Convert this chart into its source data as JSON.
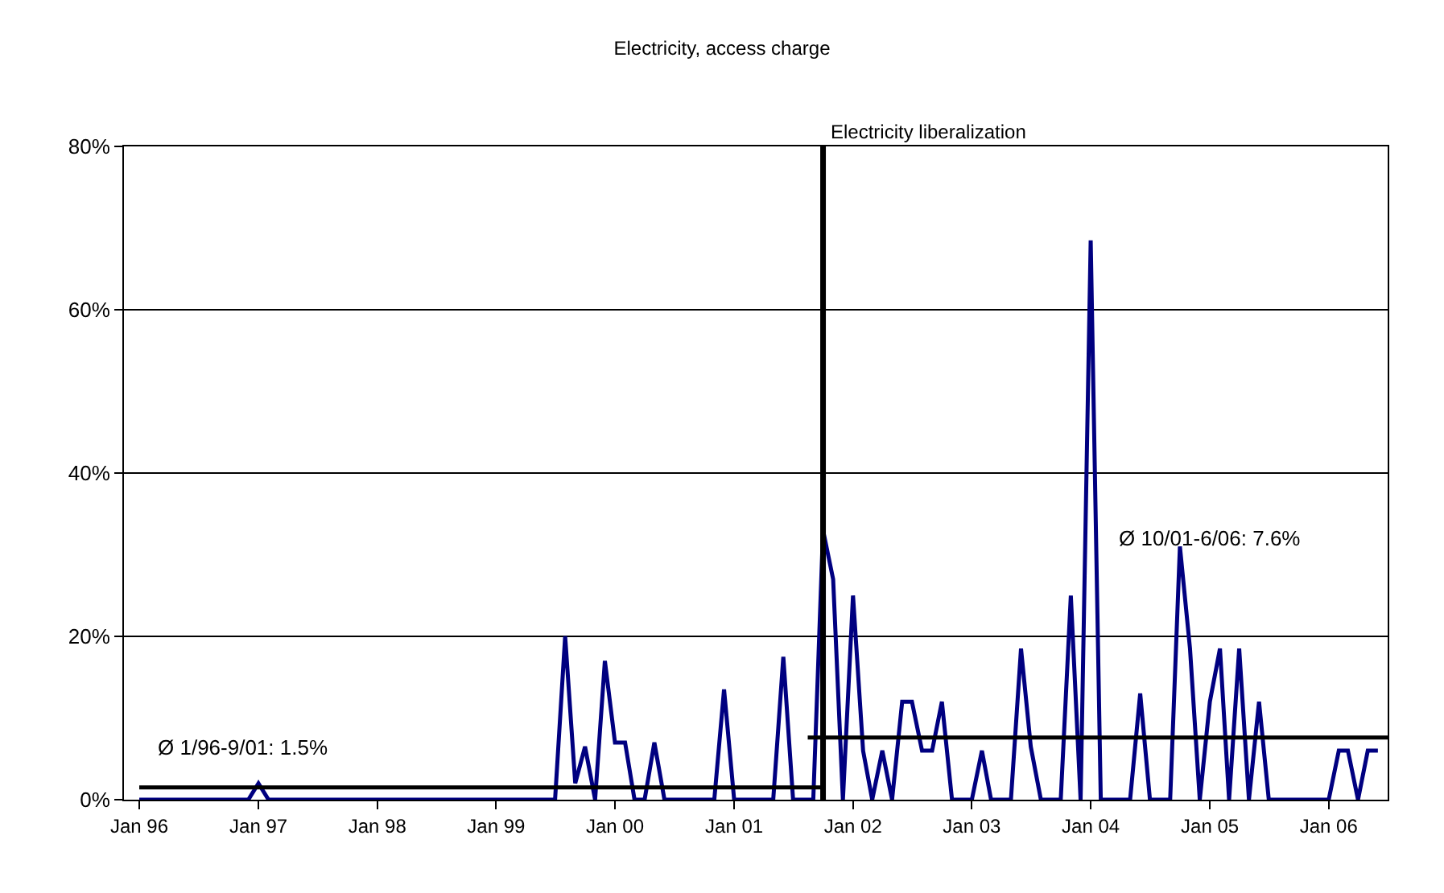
{
  "chart_data": {
    "type": "line",
    "title": "Electricity, access charge",
    "x": [
      "1996-01",
      "1996-02",
      "1996-03",
      "1996-04",
      "1996-05",
      "1996-06",
      "1996-07",
      "1996-08",
      "1996-09",
      "1996-10",
      "1996-11",
      "1996-12",
      "1997-01",
      "1997-02",
      "1997-03",
      "1997-04",
      "1997-05",
      "1997-06",
      "1997-07",
      "1997-08",
      "1997-09",
      "1997-10",
      "1997-11",
      "1997-12",
      "1998-01",
      "1998-02",
      "1998-03",
      "1998-04",
      "1998-05",
      "1998-06",
      "1998-07",
      "1998-08",
      "1998-09",
      "1998-10",
      "1998-11",
      "1998-12",
      "1999-01",
      "1999-02",
      "1999-03",
      "1999-04",
      "1999-05",
      "1999-06",
      "1999-07",
      "1999-08",
      "1999-09",
      "1999-10",
      "1999-11",
      "1999-12",
      "2000-01",
      "2000-02",
      "2000-03",
      "2000-04",
      "2000-05",
      "2000-06",
      "2000-07",
      "2000-08",
      "2000-09",
      "2000-10",
      "2000-11",
      "2000-12",
      "2001-01",
      "2001-02",
      "2001-03",
      "2001-04",
      "2001-05",
      "2001-06",
      "2001-07",
      "2001-08",
      "2001-09",
      "2001-10",
      "2001-11",
      "2001-12",
      "2002-01",
      "2002-02",
      "2002-03",
      "2002-04",
      "2002-05",
      "2002-06",
      "2002-07",
      "2002-08",
      "2002-09",
      "2002-10",
      "2002-11",
      "2002-12",
      "2003-01",
      "2003-02",
      "2003-03",
      "2003-04",
      "2003-05",
      "2003-06",
      "2003-07",
      "2003-08",
      "2003-09",
      "2003-10",
      "2003-11",
      "2003-12",
      "2004-01",
      "2004-02",
      "2004-03",
      "2004-04",
      "2004-05",
      "2004-06",
      "2004-07",
      "2004-08",
      "2004-09",
      "2004-10",
      "2004-11",
      "2004-12",
      "2005-01",
      "2005-02",
      "2005-03",
      "2005-04",
      "2005-05",
      "2005-06",
      "2005-07",
      "2005-08",
      "2005-09",
      "2005-10",
      "2005-11",
      "2005-12",
      "2006-01",
      "2006-02",
      "2006-03",
      "2006-04",
      "2006-05",
      "2006-06"
    ],
    "series": [
      {
        "color": "#000080",
        "values": [
          0,
          0,
          0,
          0,
          0,
          0,
          0,
          0,
          0,
          0,
          0,
          0,
          2,
          0,
          0,
          0,
          0,
          0,
          0,
          0,
          0,
          0,
          0,
          0,
          0,
          0,
          0,
          0,
          0,
          0,
          0,
          0,
          0,
          0,
          0,
          0,
          0,
          0,
          0,
          0,
          0,
          0,
          0,
          20,
          2,
          6.5,
          0,
          17,
          7,
          7,
          0,
          0,
          7,
          0,
          0,
          0,
          0,
          0,
          0,
          13.5,
          0,
          0,
          0,
          0,
          0,
          17.5,
          0,
          0,
          0,
          33,
          27,
          0,
          25,
          6,
          0,
          6,
          0,
          12,
          12,
          6,
          6,
          12,
          0,
          0,
          0,
          6,
          0,
          0,
          0,
          18.5,
          6.5,
          0,
          0,
          0,
          25,
          0,
          68.5,
          0,
          0,
          0,
          0,
          13,
          0,
          0,
          0,
          31,
          18.5,
          0,
          12,
          18.5,
          0,
          18.5,
          0,
          12,
          0,
          0,
          0,
          0,
          0,
          0,
          0,
          6,
          6,
          0,
          6,
          6
        ]
      },
      {
        "type": "line",
        "color": "#000000",
        "x": [
          "1996-01",
          "2001-10"
        ],
        "values": [
          1.5,
          1.5
        ]
      },
      {
        "type": "line",
        "color": "#000000",
        "x": [
          "2001-08-15",
          "2006-07"
        ],
        "values": [
          7.6,
          7.6
        ]
      }
    ],
    "ref_lines": [
      {
        "axis": "x",
        "value": "2001-10",
        "label": "Electricity liberalization",
        "color": "#000000"
      }
    ],
    "annotations": [
      "Ø 1/96-9/01: 1.5%",
      "Ø 10/01-6/06: 7.6%"
    ],
    "xlim": [
      "1995-11-15",
      "2006-07"
    ],
    "xticks": [
      {
        "value": "1996-01",
        "label": "Jan 96"
      },
      {
        "value": "1997-01",
        "label": "Jan 97"
      },
      {
        "value": "1998-01",
        "label": "Jan 98"
      },
      {
        "value": "1999-01",
        "label": "Jan 99"
      },
      {
        "value": "2000-01",
        "label": "Jan 00"
      },
      {
        "value": "2001-01",
        "label": "Jan 01"
      },
      {
        "value": "2002-01",
        "label": "Jan 02"
      },
      {
        "value": "2003-01",
        "label": "Jan 03"
      },
      {
        "value": "2004-01",
        "label": "Jan 04"
      },
      {
        "value": "2005-01",
        "label": "Jan 05"
      },
      {
        "value": "2006-01",
        "label": "Jan 06"
      }
    ],
    "ylim": [
      0,
      80
    ],
    "yticks": [
      {
        "value": 0,
        "label": "0%"
      },
      {
        "value": 20,
        "label": "20%"
      },
      {
        "value": 40,
        "label": "40%"
      },
      {
        "value": 60,
        "label": "60%"
      },
      {
        "value": 80,
        "label": "80%"
      }
    ],
    "grid": "y",
    "marker": "none",
    "line_style": "solid"
  }
}
